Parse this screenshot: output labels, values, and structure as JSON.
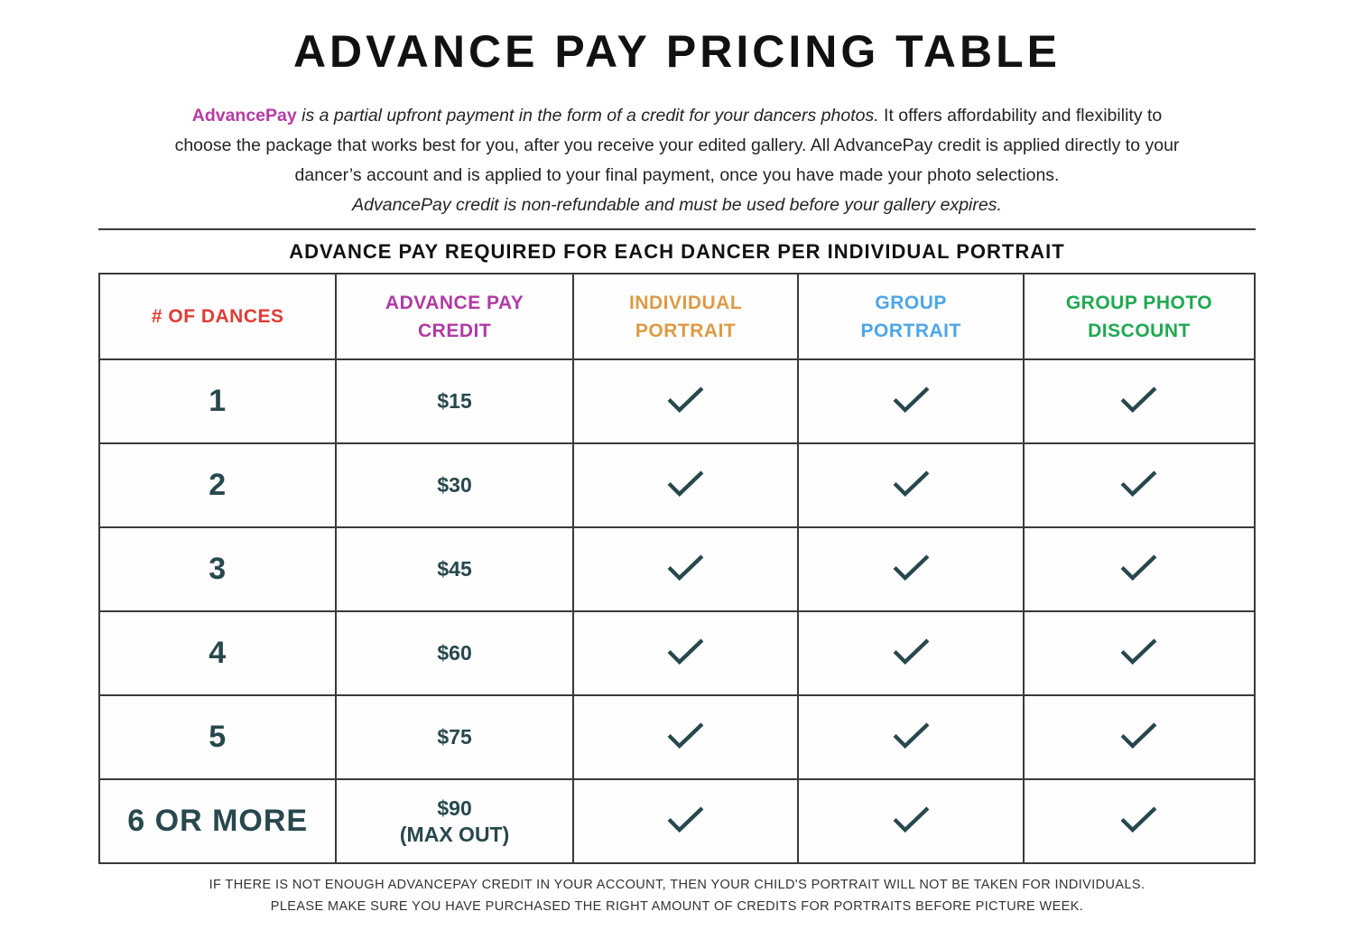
{
  "title": "ADVANCE PAY PRICING TABLE",
  "intro": {
    "lines": [
      {
        "segments": [
          {
            "text": "AdvancePay",
            "style": "brand"
          },
          {
            "text": " ",
            "style": "normal"
          },
          {
            "text": "is a partial upfront payment in the form of a credit for your dancers photos.",
            "style": "italic"
          },
          {
            "text": " It offers affordability and flexibility to",
            "style": "normal"
          }
        ]
      },
      {
        "segments": [
          {
            "text": "choose the package that works best for you, after you receive your edited gallery. All AdvancePay credit is applied directly to your",
            "style": "normal"
          }
        ]
      },
      {
        "segments": [
          {
            "text": "dancer’s account and is applied to your final payment, once you have made your photo selections.",
            "style": "normal"
          }
        ]
      },
      {
        "segments": [
          {
            "text": "AdvancePay credit is non-refundable and must be used before your gallery expires.",
            "style": "italic"
          }
        ]
      }
    ]
  },
  "brand_color": "#b53aa5",
  "table": {
    "heading": "ADVANCE PAY REQUIRED FOR EACH DANCER PER INDIVIDUAL PORTRAIT",
    "checkmark_color": "#27484d",
    "checkmark_icon": "checkmark",
    "columns": [
      {
        "label": "# OF DANCES",
        "color": "#e23c35"
      },
      {
        "label": "ADVANCE PAY\nCREDIT",
        "color": "#b13aa4"
      },
      {
        "label": "INDIVIDUAL\nPORTRAIT",
        "color": "#dd9a45"
      },
      {
        "label": "GROUP\nPORTRAIT",
        "color": "#4da6e8"
      },
      {
        "label": "GROUP PHOTO\nDISCOUNT",
        "color": "#1fa951"
      }
    ],
    "rows": [
      {
        "dances": "1",
        "credit": "$15",
        "credit_note": "",
        "checks": [
          true,
          true,
          true
        ]
      },
      {
        "dances": "2",
        "credit": "$30",
        "credit_note": "",
        "checks": [
          true,
          true,
          true
        ]
      },
      {
        "dances": "3",
        "credit": "$45",
        "credit_note": "",
        "checks": [
          true,
          true,
          true
        ]
      },
      {
        "dances": "4",
        "credit": "$60",
        "credit_note": "",
        "checks": [
          true,
          true,
          true
        ]
      },
      {
        "dances": "5",
        "credit": "$75",
        "credit_note": "",
        "checks": [
          true,
          true,
          true
        ]
      },
      {
        "dances": "6 OR MORE",
        "credit": "$90",
        "credit_note": "(MAX OUT)",
        "checks": [
          true,
          true,
          true
        ]
      }
    ]
  },
  "footer": {
    "line1": "IF THERE IS NOT ENOUGH ADVANCEPAY CREDIT IN YOUR ACCOUNT, THEN YOUR CHILD'S PORTRAIT WILL NOT BE TAKEN FOR INDIVIDUALS.",
    "line2": "PLEASE MAKE SURE YOU HAVE PURCHASED THE RIGHT AMOUNT OF CREDITS FOR PORTRAITS BEFORE PICTURE WEEK."
  }
}
